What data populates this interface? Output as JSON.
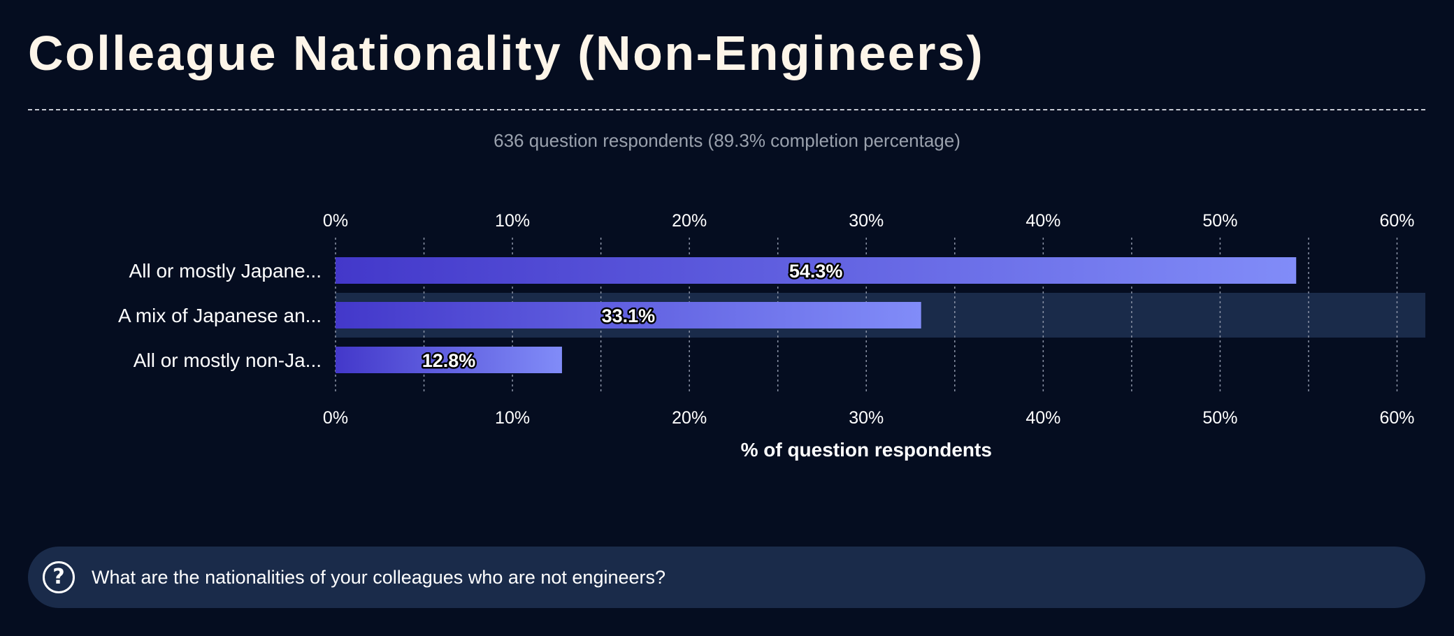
{
  "title": "Colleague Nationality (Non-Engineers)",
  "subtitle": "636 question respondents (89.3% completion percentage)",
  "question": {
    "icon": "question-circle-icon",
    "text": "What are the nationalities of your colleagues who are not engineers?"
  },
  "chart_data": {
    "type": "bar",
    "orientation": "horizontal",
    "categories": [
      "All or mostly Japane...",
      "A mix of Japanese an...",
      "All or mostly non-Ja..."
    ],
    "values": [
      54.3,
      33.1,
      12.8
    ],
    "data_labels": [
      "54.3%",
      "33.1%",
      "12.8%"
    ],
    "xlabel": "% of question respondents",
    "ylabel": "",
    "xlim": [
      0,
      61.6
    ],
    "x_ticks": [
      0,
      10,
      20,
      30,
      40,
      50,
      60
    ],
    "x_tick_labels": [
      "0%",
      "10%",
      "20%",
      "30%",
      "40%",
      "50%",
      "60%"
    ],
    "grid": true,
    "grid_minor_step": 5,
    "highlighted_category_index": 1,
    "colors": {
      "bar_start": "#4338ca",
      "bar_end": "#818cf8",
      "highlight_band": "#1a2b4a",
      "grid": "#8b93a6"
    }
  }
}
